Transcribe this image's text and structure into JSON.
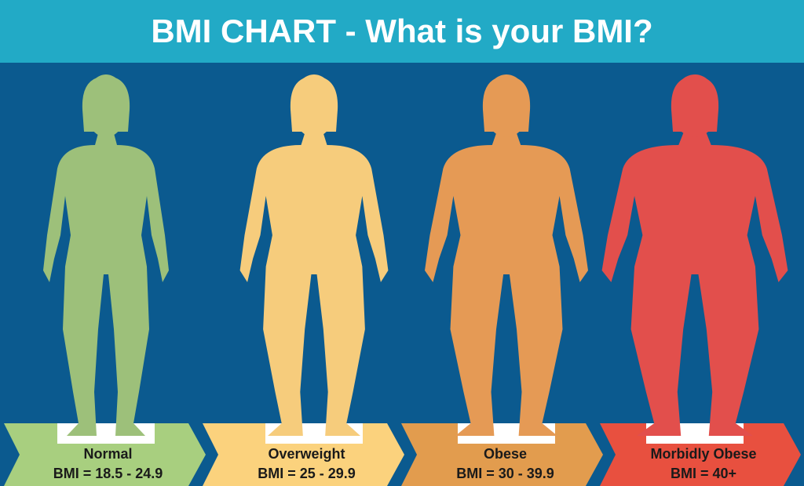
{
  "header": {
    "title": "BMI CHART - What is your BMI?"
  },
  "categories": [
    {
      "label": "Normal",
      "range": "BMI = 18.5 - 24.9"
    },
    {
      "label": "Overweight",
      "range": "BMI = 25 - 29.9"
    },
    {
      "label": "Obese",
      "range": "BMI = 30 - 39.9"
    },
    {
      "label": "Morbidly Obese",
      "range": "BMI = 40+"
    }
  ]
}
